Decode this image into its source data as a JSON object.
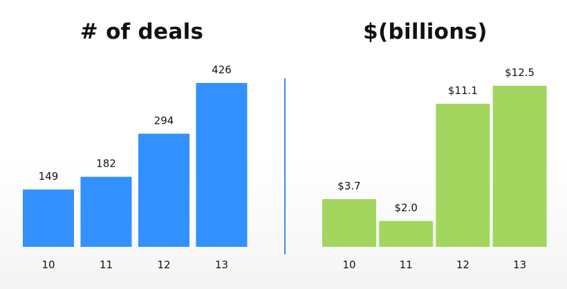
{
  "chart_data": [
    {
      "type": "bar",
      "title": "# of deals",
      "categories": [
        "10",
        "11",
        "12",
        "13"
      ],
      "values": [
        149,
        182,
        294,
        426
      ],
      "value_labels": [
        "149",
        "182",
        "294",
        "426"
      ],
      "color": "#3390ff"
    },
    {
      "type": "bar",
      "title": "$(billions)",
      "categories": [
        "10",
        "11",
        "12",
        "13"
      ],
      "values": [
        3.7,
        2.0,
        11.1,
        12.5
      ],
      "value_labels": [
        "$3.7",
        "$2.0",
        "$11.1",
        "$12.5"
      ],
      "color": "#a2d65e"
    }
  ]
}
